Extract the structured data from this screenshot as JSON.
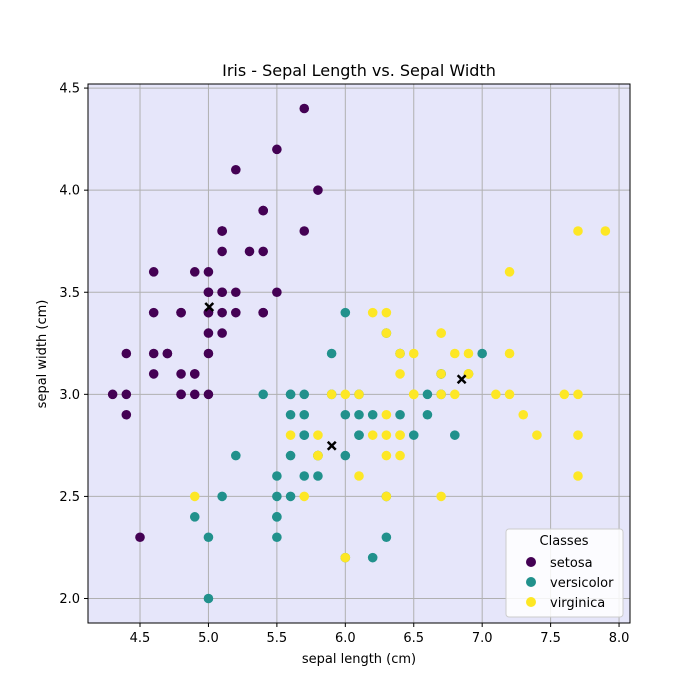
{
  "chart_data": {
    "type": "scatter",
    "title": "Iris - Sepal Length vs. Sepal Width",
    "xlabel": "sepal length (cm)",
    "ylabel": "sepal width (cm)",
    "xlim": [
      4.12,
      8.08
    ],
    "ylim": [
      1.88,
      4.52
    ],
    "xticks": [
      4.5,
      5.0,
      5.5,
      6.0,
      6.5,
      7.0,
      7.5,
      8.0
    ],
    "xtick_labels": [
      "4.5",
      "5.0",
      "5.5",
      "6.0",
      "6.5",
      "7.0",
      "7.5",
      "8.0"
    ],
    "yticks": [
      2.0,
      2.5,
      3.0,
      3.5,
      4.0,
      4.5
    ],
    "ytick_labels": [
      "2.0",
      "2.5",
      "3.0",
      "3.5",
      "4.0",
      "4.5"
    ],
    "grid": true,
    "plot_background": "#e6e6fa",
    "legend": {
      "title": "Classes",
      "placement": "lower-right"
    },
    "series": [
      {
        "name": "setosa",
        "color": "#440154",
        "points": [
          [
            5.1,
            3.5
          ],
          [
            4.9,
            3.0
          ],
          [
            4.7,
            3.2
          ],
          [
            4.6,
            3.1
          ],
          [
            5.0,
            3.6
          ],
          [
            5.4,
            3.9
          ],
          [
            4.6,
            3.4
          ],
          [
            5.0,
            3.4
          ],
          [
            4.4,
            2.9
          ],
          [
            4.9,
            3.1
          ],
          [
            5.4,
            3.7
          ],
          [
            4.8,
            3.4
          ],
          [
            4.8,
            3.0
          ],
          [
            4.3,
            3.0
          ],
          [
            5.8,
            4.0
          ],
          [
            5.7,
            4.4
          ],
          [
            5.4,
            3.9
          ],
          [
            5.1,
            3.5
          ],
          [
            5.7,
            3.8
          ],
          [
            5.1,
            3.8
          ],
          [
            5.4,
            3.4
          ],
          [
            5.1,
            3.7
          ],
          [
            4.6,
            3.6
          ],
          [
            5.1,
            3.3
          ],
          [
            4.8,
            3.4
          ],
          [
            5.0,
            3.0
          ],
          [
            5.0,
            3.4
          ],
          [
            5.2,
            3.5
          ],
          [
            5.2,
            3.4
          ],
          [
            4.7,
            3.2
          ],
          [
            4.8,
            3.1
          ],
          [
            5.4,
            3.4
          ],
          [
            5.2,
            4.1
          ],
          [
            5.5,
            4.2
          ],
          [
            4.9,
            3.1
          ],
          [
            5.0,
            3.2
          ],
          [
            5.5,
            3.5
          ],
          [
            4.9,
            3.6
          ],
          [
            4.4,
            3.0
          ],
          [
            5.1,
            3.4
          ],
          [
            5.0,
            3.5
          ],
          [
            4.5,
            2.3
          ],
          [
            4.4,
            3.2
          ],
          [
            5.0,
            3.5
          ],
          [
            5.1,
            3.8
          ],
          [
            4.8,
            3.0
          ],
          [
            5.1,
            3.8
          ],
          [
            4.6,
            3.2
          ],
          [
            5.3,
            3.7
          ],
          [
            5.0,
            3.3
          ]
        ]
      },
      {
        "name": "versicolor",
        "color": "#21918c",
        "points": [
          [
            7.0,
            3.2
          ],
          [
            6.4,
            3.2
          ],
          [
            6.9,
            3.1
          ],
          [
            5.5,
            2.3
          ],
          [
            6.5,
            2.8
          ],
          [
            5.7,
            2.8
          ],
          [
            6.3,
            3.3
          ],
          [
            4.9,
            2.4
          ],
          [
            6.6,
            2.9
          ],
          [
            5.2,
            2.7
          ],
          [
            5.0,
            2.0
          ],
          [
            5.9,
            3.0
          ],
          [
            6.0,
            2.2
          ],
          [
            6.1,
            2.9
          ],
          [
            5.6,
            2.9
          ],
          [
            6.7,
            3.1
          ],
          [
            5.6,
            3.0
          ],
          [
            5.8,
            2.7
          ],
          [
            6.2,
            2.2
          ],
          [
            5.6,
            2.5
          ],
          [
            5.9,
            3.2
          ],
          [
            6.1,
            2.8
          ],
          [
            6.3,
            2.5
          ],
          [
            6.1,
            2.8
          ],
          [
            6.4,
            2.9
          ],
          [
            6.6,
            3.0
          ],
          [
            6.8,
            2.8
          ],
          [
            6.7,
            3.0
          ],
          [
            6.0,
            2.9
          ],
          [
            5.7,
            2.6
          ],
          [
            5.5,
            2.4
          ],
          [
            5.5,
            2.4
          ],
          [
            5.8,
            2.7
          ],
          [
            6.0,
            2.7
          ],
          [
            5.4,
            3.0
          ],
          [
            6.0,
            3.4
          ],
          [
            6.7,
            3.1
          ],
          [
            6.3,
            2.3
          ],
          [
            5.6,
            3.0
          ],
          [
            5.5,
            2.5
          ],
          [
            5.5,
            2.6
          ],
          [
            6.1,
            3.0
          ],
          [
            5.8,
            2.6
          ],
          [
            5.0,
            2.3
          ],
          [
            5.6,
            2.7
          ],
          [
            5.7,
            3.0
          ],
          [
            5.7,
            2.9
          ],
          [
            6.2,
            2.9
          ],
          [
            5.1,
            2.5
          ],
          [
            5.7,
            2.8
          ]
        ]
      },
      {
        "name": "virginica",
        "color": "#fde725",
        "points": [
          [
            6.3,
            3.3
          ],
          [
            5.8,
            2.7
          ],
          [
            7.1,
            3.0
          ],
          [
            6.3,
            2.9
          ],
          [
            6.5,
            3.0
          ],
          [
            7.6,
            3.0
          ],
          [
            4.9,
            2.5
          ],
          [
            7.3,
            2.9
          ],
          [
            6.7,
            2.5
          ],
          [
            7.2,
            3.6
          ],
          [
            6.5,
            3.2
          ],
          [
            6.4,
            2.7
          ],
          [
            6.8,
            3.0
          ],
          [
            5.7,
            2.5
          ],
          [
            5.8,
            2.8
          ],
          [
            6.4,
            3.2
          ],
          [
            6.5,
            3.0
          ],
          [
            7.7,
            3.8
          ],
          [
            7.7,
            2.6
          ],
          [
            6.0,
            2.2
          ],
          [
            6.9,
            3.2
          ],
          [
            5.6,
            2.8
          ],
          [
            7.7,
            2.8
          ],
          [
            6.3,
            2.7
          ],
          [
            6.7,
            3.3
          ],
          [
            7.2,
            3.2
          ],
          [
            6.2,
            2.8
          ],
          [
            6.1,
            3.0
          ],
          [
            6.4,
            2.8
          ],
          [
            7.2,
            3.0
          ],
          [
            7.4,
            2.8
          ],
          [
            7.9,
            3.8
          ],
          [
            6.4,
            2.8
          ],
          [
            6.3,
            2.8
          ],
          [
            6.1,
            2.6
          ],
          [
            7.7,
            3.0
          ],
          [
            6.3,
            3.4
          ],
          [
            6.4,
            3.1
          ],
          [
            6.0,
            3.0
          ],
          [
            6.9,
            3.1
          ],
          [
            6.7,
            3.1
          ],
          [
            6.9,
            3.1
          ],
          [
            5.8,
            2.7
          ],
          [
            6.8,
            3.2
          ],
          [
            6.7,
            3.3
          ],
          [
            6.7,
            3.0
          ],
          [
            6.3,
            2.5
          ],
          [
            6.5,
            3.0
          ],
          [
            6.2,
            3.4
          ],
          [
            5.9,
            3.0
          ]
        ]
      }
    ],
    "centroids": {
      "color": "#000000",
      "marker": "x",
      "points": [
        [
          5.006,
          3.428
        ],
        [
          5.901,
          2.748
        ],
        [
          6.85,
          3.074
        ]
      ]
    }
  }
}
